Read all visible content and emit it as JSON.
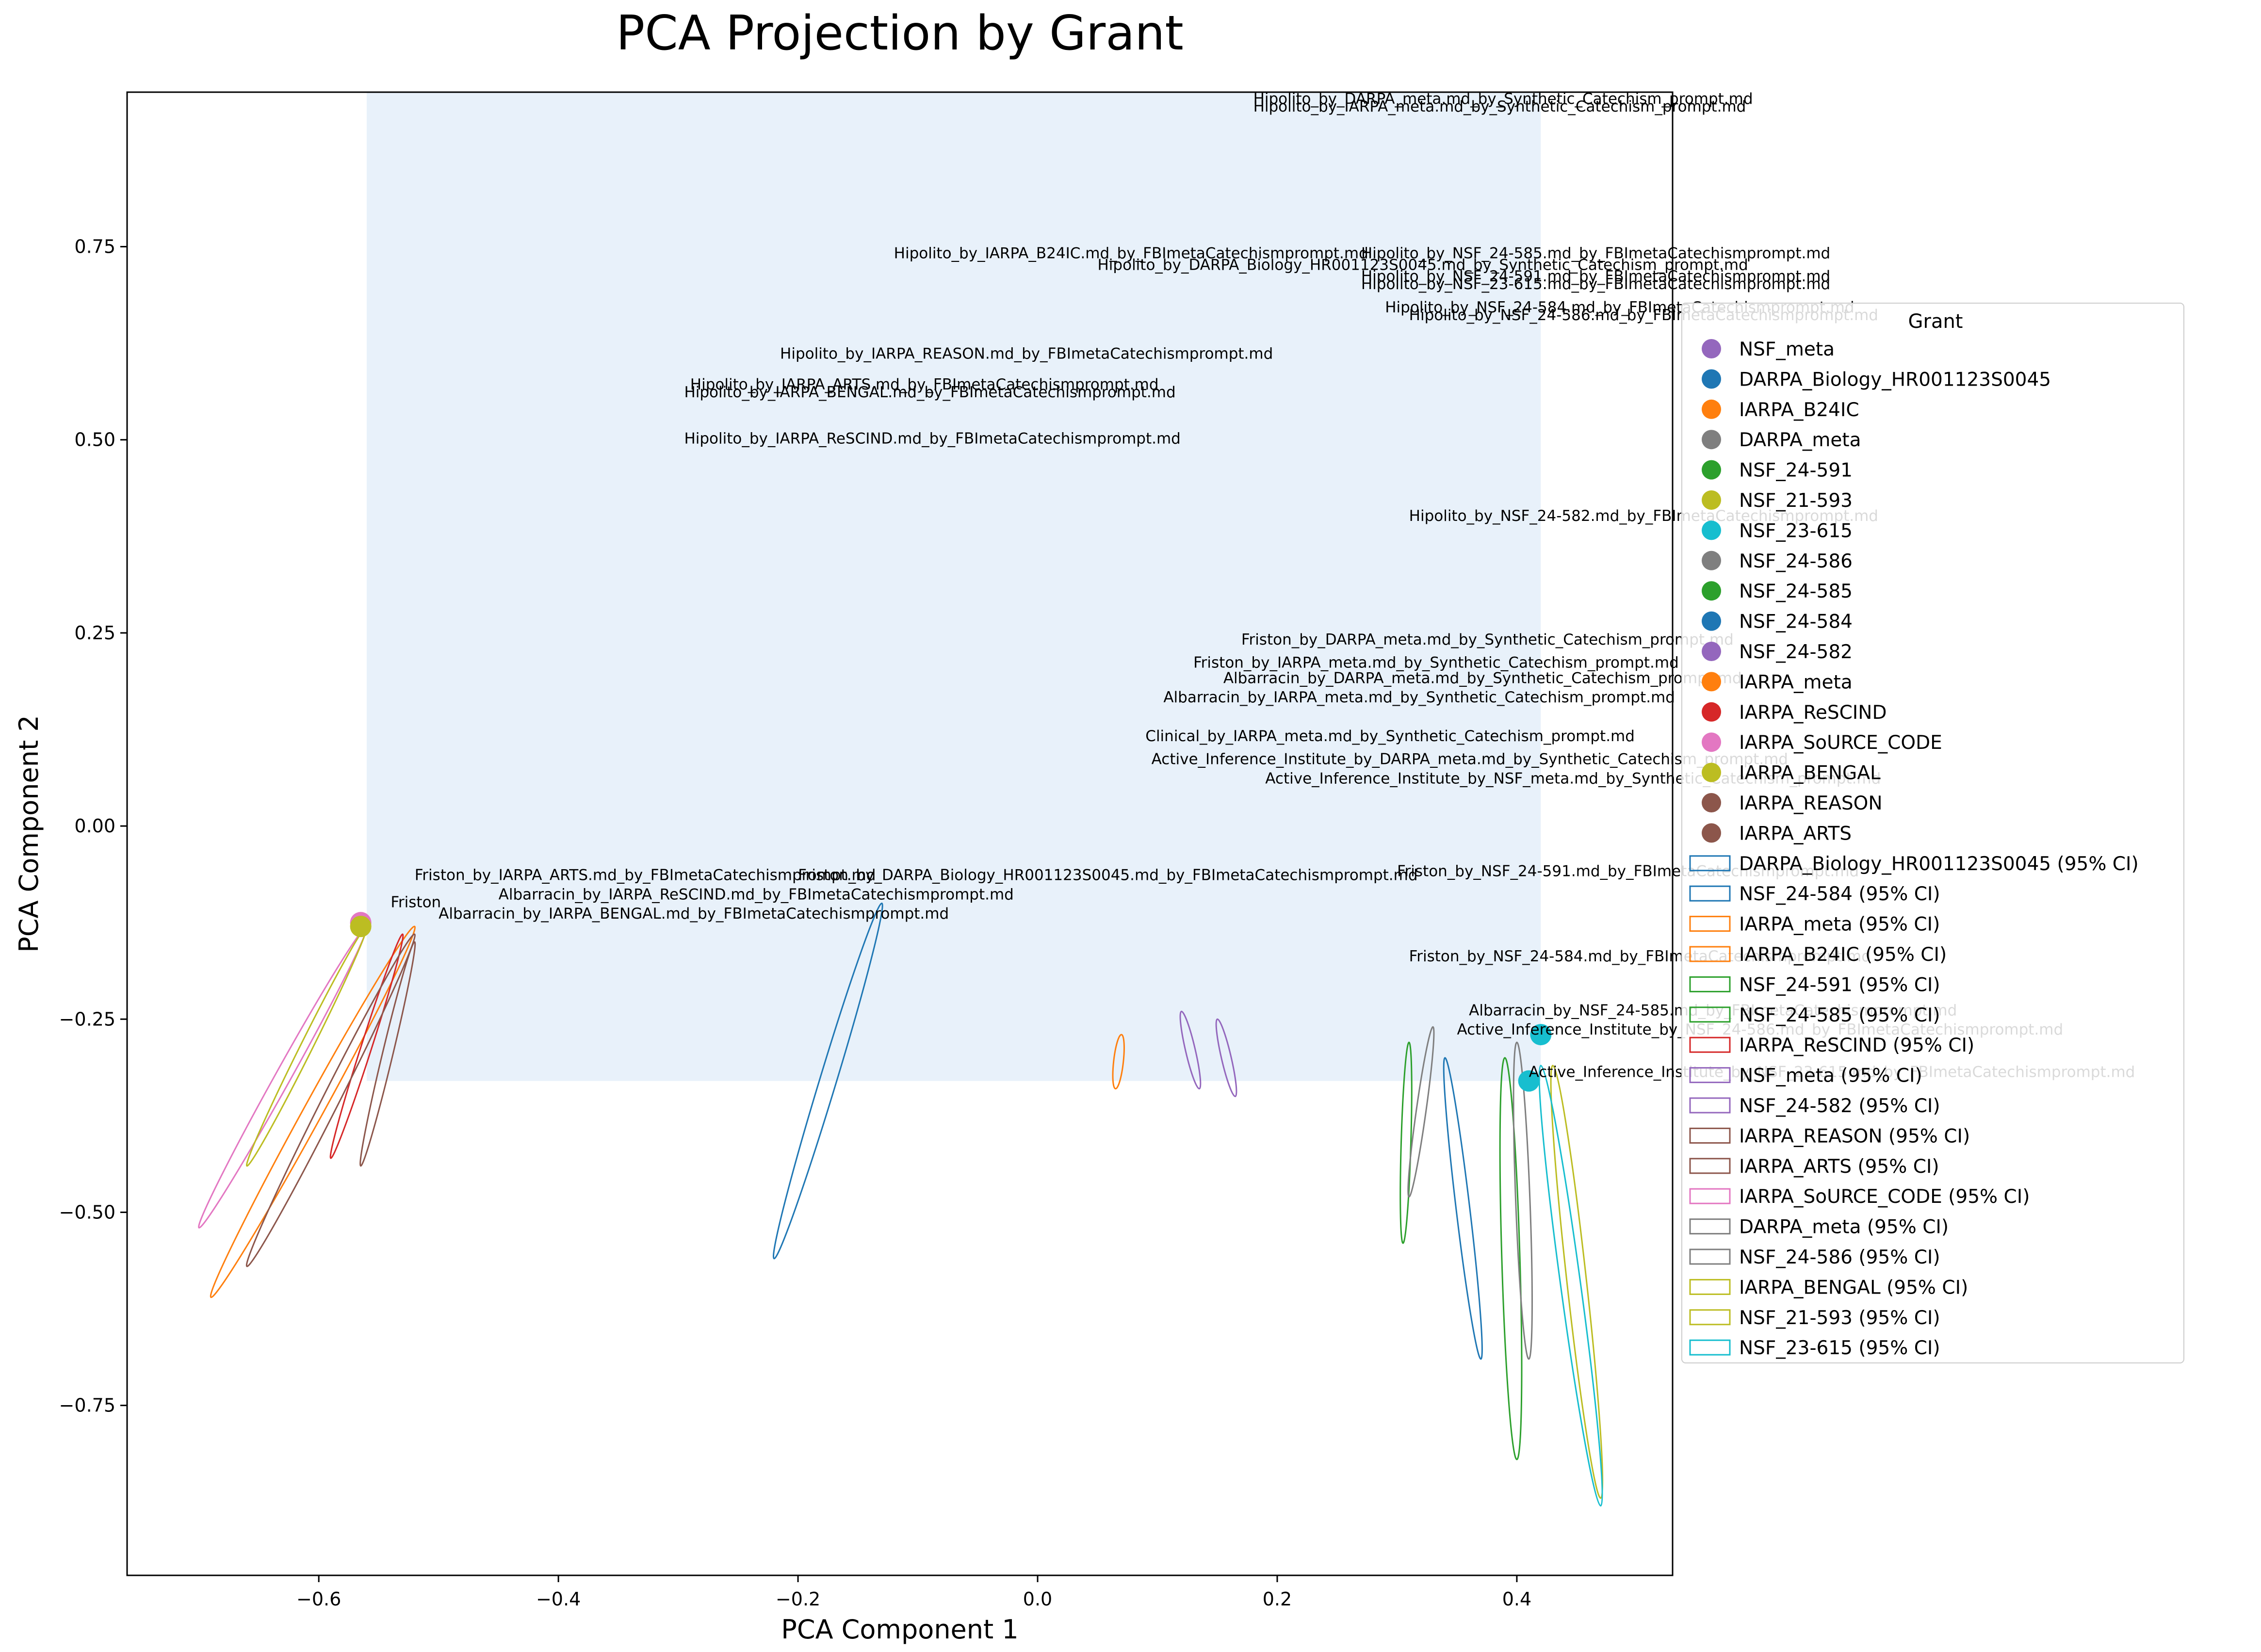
{
  "chart_data": {
    "type": "scatter",
    "title": "PCA Projection by Grant",
    "xlabel": "PCA Component 1",
    "ylabel": "PCA Component 2",
    "xlim": [
      -0.76,
      0.53
    ],
    "ylim": [
      -0.97,
      0.95
    ],
    "xticks": [
      -0.6,
      -0.4,
      -0.2,
      0.0,
      0.2,
      0.4
    ],
    "xtick_labels": [
      "−0.6",
      "−0.4",
      "−0.2",
      "0.0",
      "0.2",
      "0.4"
    ],
    "yticks": [
      -0.75,
      -0.5,
      -0.25,
      0.0,
      0.25,
      0.5,
      0.75
    ],
    "ytick_labels": [
      "−0.75",
      "−0.50",
      "−0.25",
      "0.00",
      "0.25",
      "0.50",
      "0.75"
    ],
    "grid": false,
    "legend_title": "Grant",
    "legend_position": "right",
    "density_region": {
      "x": [
        -0.56,
        0.42
      ],
      "y": [
        -0.33,
        0.95
      ],
      "color": "#e8f1fa"
    },
    "series": [
      {
        "name": "NSF_meta",
        "color": "#9467bd"
      },
      {
        "name": "DARPA_Biology_HR001123S0045",
        "color": "#1f77b4"
      },
      {
        "name": "IARPA_B24IC",
        "color": "#ff7f0e"
      },
      {
        "name": "DARPA_meta",
        "color": "#7f7f7f"
      },
      {
        "name": "NSF_24-591",
        "color": "#2ca02c"
      },
      {
        "name": "NSF_21-593",
        "color": "#bcbd22"
      },
      {
        "name": "NSF_23-615",
        "color": "#17becf"
      },
      {
        "name": "NSF_24-586",
        "color": "#7f7f7f"
      },
      {
        "name": "NSF_24-585",
        "color": "#2ca02c"
      },
      {
        "name": "NSF_24-584",
        "color": "#1f77b4"
      },
      {
        "name": "NSF_24-582",
        "color": "#9467bd"
      },
      {
        "name": "IARPA_meta",
        "color": "#ff7f0e"
      },
      {
        "name": "IARPA_ReSCIND",
        "color": "#d62728"
      },
      {
        "name": "IARPA_SoURCE_CODE",
        "color": "#e377c2"
      },
      {
        "name": "IARPA_BENGAL",
        "color": "#bcbd22"
      },
      {
        "name": "IARPA_REASON",
        "color": "#8c564b"
      },
      {
        "name": "IARPA_ARTS",
        "color": "#8c564b"
      }
    ],
    "ellipses": [
      {
        "name": "DARPA_Biology_HR001123S0045 (95% CI)",
        "color": "#1f77b4",
        "top": [
          -0.13,
          -0.1
        ],
        "bottom": [
          -0.22,
          -0.56
        ]
      },
      {
        "name": "NSF_24-584 (95% CI)",
        "color": "#1f77b4",
        "top": [
          0.34,
          -0.3
        ],
        "bottom": [
          0.37,
          -0.69
        ]
      },
      {
        "name": "IARPA_meta (95% CI)",
        "color": "#ff7f0e",
        "top": [
          0.07,
          -0.27
        ],
        "bottom": [
          0.065,
          -0.34
        ]
      },
      {
        "name": "IARPA_B24IC (95% CI)",
        "color": "#ff7f0e",
        "top": [
          -0.52,
          -0.13
        ],
        "bottom": [
          -0.69,
          -0.61
        ]
      },
      {
        "name": "NSF_24-591 (95% CI)",
        "color": "#2ca02c",
        "top": [
          0.31,
          -0.28
        ],
        "bottom": [
          0.305,
          -0.54
        ]
      },
      {
        "name": "NSF_24-585 (95% CI)",
        "color": "#2ca02c",
        "top": [
          0.39,
          -0.3
        ],
        "bottom": [
          0.4,
          -0.82
        ]
      },
      {
        "name": "IARPA_ReSCIND (95% CI)",
        "color": "#d62728",
        "top": [
          -0.53,
          -0.14
        ],
        "bottom": [
          -0.59,
          -0.43
        ]
      },
      {
        "name": "NSF_meta (95% CI)",
        "color": "#9467bd",
        "top": [
          0.15,
          -0.25
        ],
        "bottom": [
          0.165,
          -0.35
        ]
      },
      {
        "name": "NSF_24-582 (95% CI)",
        "color": "#9467bd",
        "top": [
          0.12,
          -0.24
        ],
        "bottom": [
          0.135,
          -0.34
        ]
      },
      {
        "name": "IARPA_REASON (95% CI)",
        "color": "#8c564b",
        "top": [
          -0.52,
          -0.14
        ],
        "bottom": [
          -0.66,
          -0.57
        ]
      },
      {
        "name": "IARPA_ARTS (95% CI)",
        "color": "#8c564b",
        "top": [
          -0.52,
          -0.15
        ],
        "bottom": [
          -0.565,
          -0.44
        ]
      },
      {
        "name": "IARPA_SoURCE_CODE (95% CI)",
        "color": "#e377c2",
        "top": [
          -0.56,
          -0.13
        ],
        "bottom": [
          -0.7,
          -0.52
        ]
      },
      {
        "name": "DARPA_meta (95% CI)",
        "color": "#7f7f7f",
        "top": [
          0.33,
          -0.26
        ],
        "bottom": [
          0.31,
          -0.48
        ]
      },
      {
        "name": "NSF_24-586 (95% CI)",
        "color": "#7f7f7f",
        "top": [
          0.4,
          -0.28
        ],
        "bottom": [
          0.41,
          -0.69
        ]
      },
      {
        "name": "IARPA_BENGAL (95% CI)",
        "color": "#bcbd22",
        "top": [
          -0.56,
          -0.13
        ],
        "bottom": [
          -0.66,
          -0.44
        ]
      },
      {
        "name": "NSF_21-593 (95% CI)",
        "color": "#bcbd22",
        "top": [
          0.43,
          -0.31
        ],
        "bottom": [
          0.47,
          -0.87
        ]
      },
      {
        "name": "NSF_23-615 (95% CI)",
        "color": "#17becf",
        "top": [
          0.42,
          -0.31
        ],
        "bottom": [
          0.47,
          -0.88
        ]
      }
    ],
    "points": [
      {
        "x": -0.565,
        "y": -0.125,
        "color": "#e377c2"
      },
      {
        "x": -0.565,
        "y": -0.13,
        "color": "#bcbd22"
      },
      {
        "x": 0.41,
        "y": -0.33,
        "color": "#17becf"
      },
      {
        "x": 0.42,
        "y": -0.27,
        "color": "#17becf"
      }
    ],
    "point_labels": [
      {
        "x": -0.12,
        "y": 0.735,
        "text": "Hipolito_by_IARPA_B24IC.md_by_FBImetaCatechismprompt.md"
      },
      {
        "x": -0.215,
        "y": 0.605,
        "text": "Hipolito_by_IARPA_REASON.md_by_FBImetaCatechismprompt.md"
      },
      {
        "x": -0.29,
        "y": 0.565,
        "text": "Hipolito_by_IARPA_ARTS.md_by_FBImetaCatechismprompt.md"
      },
      {
        "x": -0.295,
        "y": 0.555,
        "text": "Hipolito_by_IARPA_BENGAL.md_by_FBImetaCatechismprompt.md"
      },
      {
        "x": -0.295,
        "y": 0.495,
        "text": "Hipolito_by_IARPA_ReSCIND.md_by_FBImetaCatechismprompt.md"
      },
      {
        "x": 0.18,
        "y": 0.935,
        "text": "Hipolito_by_DARPA_meta.md_by_Synthetic_Catechism_prompt.md"
      },
      {
        "x": 0.18,
        "y": 0.925,
        "text": "Hipolito_by_IARPA_meta.md_by_Synthetic_Catechism_prompt.md"
      },
      {
        "x": 0.27,
        "y": 0.735,
        "text": "Hipolito_by_NSF_24-585.md_by_FBImetaCatechismprompt.md"
      },
      {
        "x": 0.05,
        "y": 0.72,
        "text": "Hipolito_by_DARPA_Biology_HR001123S0045.md_by_Synthetic_Catechism_prompt.md"
      },
      {
        "x": 0.27,
        "y": 0.705,
        "text": "Hipolito_by_NSF_24-591.md_by_FBImetaCatechismprompt.md"
      },
      {
        "x": 0.27,
        "y": 0.695,
        "text": "Hipolito_by_NSF_23-615.md_by_FBImetaCatechismprompt.md"
      },
      {
        "x": 0.29,
        "y": 0.665,
        "text": "Hipolito_by_NSF_24-584.md_by_FBImetaCatechismprompt.md"
      },
      {
        "x": 0.31,
        "y": 0.655,
        "text": "Hipolito_by_NSF_24-586.md_by_FBImetaCatechismprompt.md"
      },
      {
        "x": 0.31,
        "y": 0.395,
        "text": "Hipolito_by_NSF_24-582.md_by_FBImetaCatechismprompt.md"
      },
      {
        "x": 0.17,
        "y": 0.235,
        "text": "Friston_by_DARPA_meta.md_by_Synthetic_Catechism_prompt.md"
      },
      {
        "x": 0.13,
        "y": 0.205,
        "text": "Friston_by_IARPA_meta.md_by_Synthetic_Catechism_prompt.md"
      },
      {
        "x": 0.155,
        "y": 0.185,
        "text": "Albarracin_by_DARPA_meta.md_by_Synthetic_Catechism_prompt.md"
      },
      {
        "x": 0.105,
        "y": 0.16,
        "text": "Albarracin_by_IARPA_meta.md_by_Synthetic_Catechism_prompt.md"
      },
      {
        "x": 0.09,
        "y": 0.11,
        "text": "Clinical_by_IARPA_meta.md_by_Synthetic_Catechism_prompt.md"
      },
      {
        "x": 0.095,
        "y": 0.08,
        "text": "Active_Inference_Institute_by_DARPA_meta.md_by_Synthetic_Catechism_prompt.md"
      },
      {
        "x": 0.19,
        "y": 0.055,
        "text": "Active_Inference_Institute_by_NSF_meta.md_by_Synthetic_Catechism_prompt.md"
      },
      {
        "x": -0.52,
        "y": -0.07,
        "text": "Friston_by_IARPA_ARTS.md_by_FBImetaCatechismprompt.md"
      },
      {
        "x": -0.45,
        "y": -0.095,
        "text": "Albarracin_by_IARPA_ReSCIND.md_by_FBImetaCatechismprompt.md"
      },
      {
        "x": -0.5,
        "y": -0.12,
        "text": "Albarracin_by_IARPA_BENGAL.md_by_FBImetaCatechismprompt.md"
      },
      {
        "x": -0.2,
        "y": -0.07,
        "text": "Friston_by_DARPA_Biology_HR001123S0045.md_by_FBImetaCatechismprompt.md"
      },
      {
        "x": -0.54,
        "y": -0.105,
        "text": "Friston"
      },
      {
        "x": 0.3,
        "y": -0.065,
        "text": "Friston_by_NSF_24-591.md_by_FBImetaCatechismprompt.md"
      },
      {
        "x": 0.31,
        "y": -0.175,
        "text": "Friston_by_NSF_24-584.md_by_FBImetaCatechismprompt.md"
      },
      {
        "x": 0.36,
        "y": -0.245,
        "text": "Albarracin_by_NSF_24-585.md_by_FBImetaCatechismprompt.md"
      },
      {
        "x": 0.35,
        "y": -0.27,
        "text": "Active_Inference_Institute_by_NSF_24-586.md_by_FBImetaCatechismprompt.md"
      },
      {
        "x": 0.41,
        "y": -0.325,
        "text": "Active_Inference_Institute_by_NSF_23-615.md_by_FBImetaCatechismprompt.md"
      }
    ]
  }
}
